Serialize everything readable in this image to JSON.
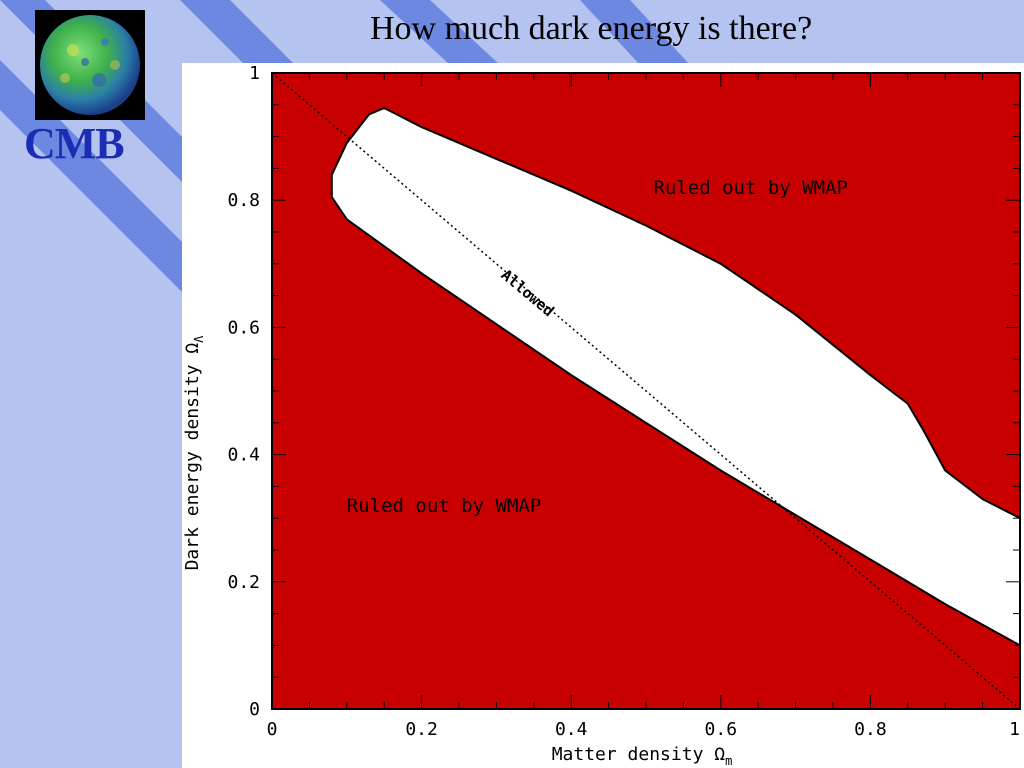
{
  "slide": {
    "title": "How much dark energy is there?",
    "logo_label": "CMB",
    "logo_icon": "cmb-sky-globe-icon",
    "background_color": "#b4c3f0",
    "stripe_color": "#6d88e0",
    "logo_label_color": "#1a2db4"
  },
  "chart_data": {
    "type": "area",
    "xlabel": "Matter density Ω",
    "xlabel_sub": "m",
    "ylabel": "Dark energy density Ω",
    "ylabel_sub": "Λ",
    "xlim": [
      0,
      1
    ],
    "ylim": [
      0,
      1
    ],
    "x_ticks": [
      {
        "value": 0,
        "label": "0"
      },
      {
        "value": 0.2,
        "label": "0.2"
      },
      {
        "value": 0.4,
        "label": "0.4"
      },
      {
        "value": 0.6,
        "label": "0.6"
      },
      {
        "value": 0.8,
        "label": "0.8"
      },
      {
        "value": 1,
        "label": "1"
      }
    ],
    "y_ticks": [
      {
        "value": 0,
        "label": "0"
      },
      {
        "value": 0.2,
        "label": "0.2"
      },
      {
        "value": 0.4,
        "label": "0.4"
      },
      {
        "value": 0.6,
        "label": "0.6"
      },
      {
        "value": 0.8,
        "label": "0.8"
      },
      {
        "value": 1,
        "label": "1"
      }
    ],
    "excluded_color": "#c80000",
    "allowed_color": "#ffffff",
    "allowed_region": [
      [
        0.08,
        0.84
      ],
      [
        0.1,
        0.89
      ],
      [
        0.13,
        0.935
      ],
      [
        0.15,
        0.945
      ],
      [
        0.2,
        0.915
      ],
      [
        0.3,
        0.865
      ],
      [
        0.4,
        0.815
      ],
      [
        0.5,
        0.76
      ],
      [
        0.6,
        0.7
      ],
      [
        0.7,
        0.62
      ],
      [
        0.8,
        0.525
      ],
      [
        0.85,
        0.48
      ],
      [
        0.87,
        0.44
      ],
      [
        0.9,
        0.375
      ],
      [
        0.95,
        0.33
      ],
      [
        1.0,
        0.3
      ],
      [
        1.0,
        0.1
      ],
      [
        0.9,
        0.165
      ],
      [
        0.8,
        0.235
      ],
      [
        0.7,
        0.305
      ],
      [
        0.6,
        0.375
      ],
      [
        0.5,
        0.45
      ],
      [
        0.4,
        0.525
      ],
      [
        0.3,
        0.605
      ],
      [
        0.2,
        0.685
      ],
      [
        0.1,
        0.77
      ],
      [
        0.08,
        0.805
      ]
    ],
    "flat_universe_line": [
      [
        0,
        1
      ],
      [
        1,
        0
      ]
    ],
    "annotations": [
      {
        "name": "ruled-out-upper",
        "text": "Ruled out by WMAP",
        "x": 0.51,
        "y": 0.81,
        "angle": 0,
        "color": "#000000"
      },
      {
        "name": "ruled-out-lower",
        "text": "Ruled out by WMAP",
        "x": 0.1,
        "y": 0.31,
        "angle": 0,
        "color": "#000000"
      },
      {
        "name": "allowed",
        "text": "Allowed",
        "x": 0.305,
        "y": 0.68,
        "angle": 40,
        "color": "#000000"
      }
    ]
  }
}
